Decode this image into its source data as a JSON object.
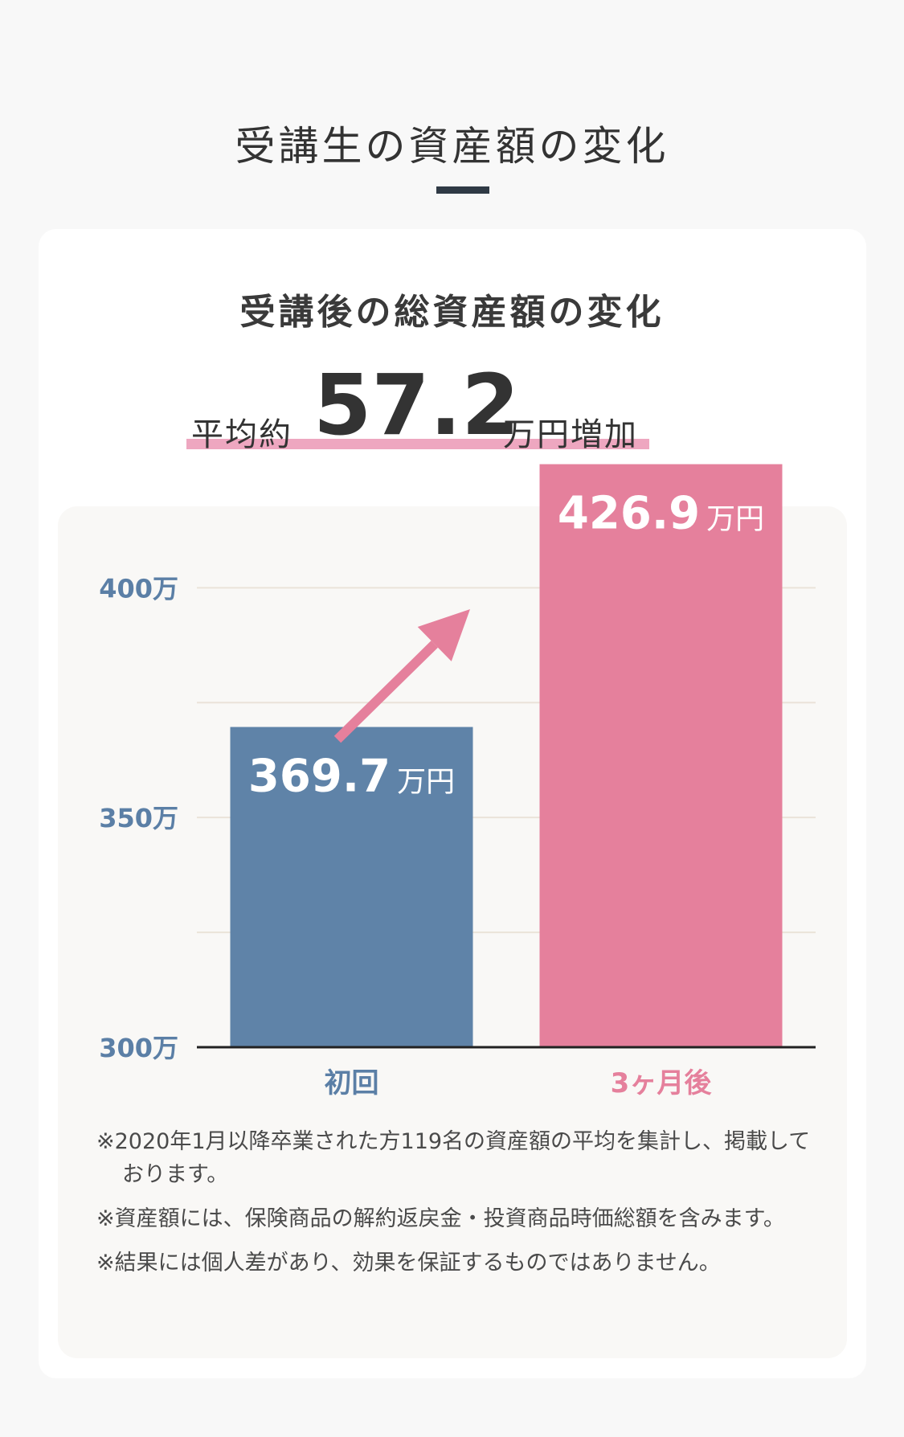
{
  "section_title": "受講生の資産額の変化",
  "card_title": "受講後の総資産額の変化",
  "headline": {
    "prefix": "平均約",
    "value": "57.2",
    "suffix": "万円増加"
  },
  "colors": {
    "blue": "#5f83a8",
    "pink": "#e5809c",
    "axis_label": "#5b7fa6",
    "grid": "#eae3d9",
    "highlight": "#eea7c0"
  },
  "chart_data": {
    "type": "bar",
    "categories": [
      "初回",
      "3ヶ月後"
    ],
    "values": [
      369.7,
      426.9
    ],
    "value_labels": [
      "369.7",
      "426.9"
    ],
    "unit": "万円",
    "ylim": [
      300,
      420
    ],
    "yticks": [
      300,
      350,
      400
    ],
    "ytick_labels": [
      "300万",
      "350万",
      "400万"
    ],
    "gridlines": [
      325,
      350,
      375,
      400
    ],
    "bar_colors": [
      "#5f83a8",
      "#e5809c"
    ],
    "category_colors": [
      "#5b7fa6",
      "#e5809c"
    ],
    "annotation": "increase arrow",
    "grid": true
  },
  "notes": [
    "※2020年1月以降卒業された方119名の資産額の平均を集計し、掲載しております。",
    "※資産額には、保険商品の解約返戻金・投資商品時価総額を含みます。",
    "※結果には個人差があり、効果を保証するものではありません。"
  ]
}
